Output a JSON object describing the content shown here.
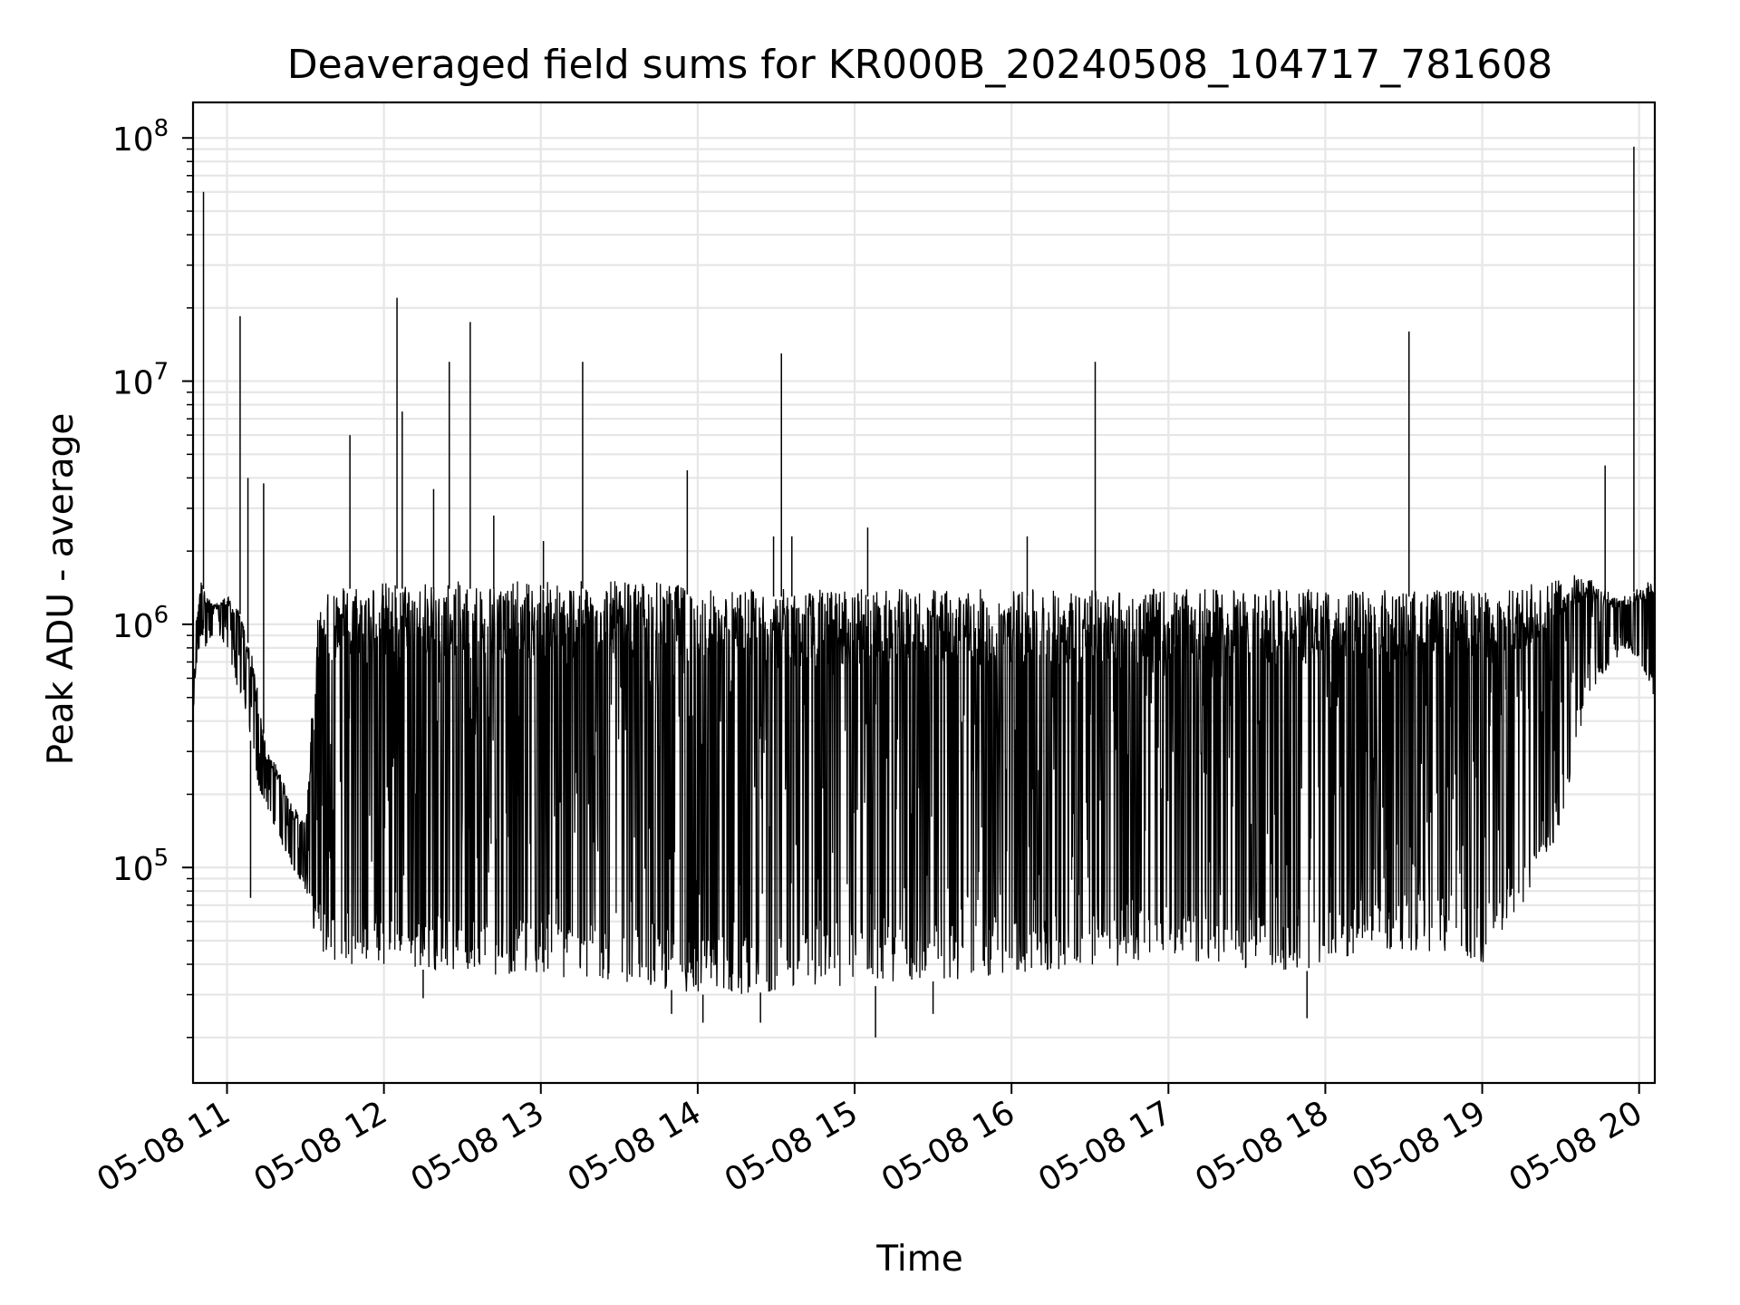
{
  "chart_data": {
    "type": "line",
    "title": "Deaveraged field sums for KR000B_20240508_104717_781608",
    "xlabel": "Time",
    "ylabel": "Peak ADU - average",
    "yscale": "log",
    "ylim": [
      13000,
      140000000
    ],
    "xlim": [
      "2024-05-08 10:47",
      "2024-05-08 20:06"
    ],
    "grid": true,
    "line_color": "#000000",
    "x_ticks": [
      "05-08 11",
      "05-08 12",
      "05-08 13",
      "05-08 14",
      "05-08 15",
      "05-08 16",
      "05-08 17",
      "05-08 18",
      "05-08 19",
      "05-08 20"
    ],
    "y_ticks": [
      {
        "base": "10",
        "exp": "5",
        "value": 100000
      },
      {
        "base": "10",
        "exp": "6",
        "value": 1000000
      },
      {
        "base": "10",
        "exp": "7",
        "value": 10000000
      },
      {
        "base": "10",
        "exp": "8",
        "value": 100000000
      }
    ],
    "series": [
      {
        "x": [
          "10:47",
          "10:48",
          "10:50",
          "10:52",
          "10:55",
          "11:00",
          "11:05",
          "11:10",
          "11:12",
          "11:15",
          "11:20",
          "11:25",
          "11:30",
          "11:35",
          "11:40",
          "11:45",
          "11:50",
          "12:00",
          "12:15",
          "12:30",
          "12:45",
          "13:00",
          "13:15",
          "13:30",
          "13:45",
          "14:00",
          "14:15",
          "14:30",
          "14:45",
          "15:00",
          "15:15",
          "15:30",
          "15:45",
          "16:00",
          "16:15",
          "16:30",
          "16:45",
          "17:00",
          "17:15",
          "17:30",
          "17:45",
          "18:00",
          "18:15",
          "18:30",
          "18:45",
          "19:00",
          "19:10",
          "19:20",
          "19:30",
          "19:40",
          "19:50",
          "19:55",
          "20:00",
          "20:05"
        ],
        "y_top": [
          400000,
          1000000,
          1500000,
          1300000,
          1200000,
          1300000,
          1100000,
          700000,
          500000,
          300000,
          250000,
          180000,
          150000,
          1200000,
          1300000,
          1400000,
          1400000,
          1400000,
          1400000,
          1400000,
          1400000,
          1400000,
          1400000,
          1400000,
          1400000,
          1300000,
          1300000,
          1300000,
          1300000,
          1300000,
          1300000,
          1300000,
          1300000,
          1300000,
          1300000,
          1300000,
          1300000,
          1300000,
          1300000,
          1300000,
          1300000,
          1300000,
          1300000,
          1300000,
          1300000,
          1300000,
          1300000,
          1400000,
          1500000,
          1600000,
          1300000,
          1300000,
          1400000,
          1500000
        ],
        "y_bottom": [
          300000,
          600000,
          900000,
          800000,
          900000,
          800000,
          500000,
          300000,
          200000,
          180000,
          130000,
          100000,
          80000,
          45000,
          42000,
          40000,
          40000,
          38000,
          38000,
          37000,
          36000,
          35000,
          34000,
          33000,
          32000,
          30000,
          30000,
          31000,
          32000,
          32000,
          33000,
          34000,
          35000,
          36000,
          37000,
          38000,
          40000,
          42000,
          40000,
          38000,
          37000,
          38000,
          45000,
          45000,
          45000,
          40000,
          55000,
          80000,
          150000,
          500000,
          700000,
          800000,
          700000,
          500000
        ]
      }
    ],
    "spikes": [
      {
        "x": "10:51",
        "y": 60000000
      },
      {
        "x": "11:05",
        "y": 18500000
      },
      {
        "x": "11:08",
        "y": 4000000
      },
      {
        "x": "11:14",
        "y": 3800000
      },
      {
        "x": "11:47",
        "y": 6000000
      },
      {
        "x": "12:05",
        "y": 22000000
      },
      {
        "x": "12:07",
        "y": 7500000
      },
      {
        "x": "12:19",
        "y": 3600000
      },
      {
        "x": "12:25",
        "y": 12000000
      },
      {
        "x": "12:33",
        "y": 17500000
      },
      {
        "x": "12:42",
        "y": 2800000
      },
      {
        "x": "13:01",
        "y": 2200000
      },
      {
        "x": "13:16",
        "y": 12000000
      },
      {
        "x": "13:56",
        "y": 4300000
      },
      {
        "x": "14:29",
        "y": 2300000
      },
      {
        "x": "14:32",
        "y": 13000000
      },
      {
        "x": "14:36",
        "y": 2300000
      },
      {
        "x": "15:05",
        "y": 2500000
      },
      {
        "x": "16:06",
        "y": 2300000
      },
      {
        "x": "16:32",
        "y": 12000000
      },
      {
        "x": "18:32",
        "y": 16000000
      },
      {
        "x": "19:47",
        "y": 4500000
      },
      {
        "x": "19:58",
        "y": 92000000
      }
    ],
    "dips": [
      {
        "x": "11:09",
        "y": 75000
      },
      {
        "x": "12:15",
        "y": 29000
      },
      {
        "x": "13:50",
        "y": 25000
      },
      {
        "x": "14:02",
        "y": 23000
      },
      {
        "x": "14:24",
        "y": 23000
      },
      {
        "x": "15:08",
        "y": 20000
      },
      {
        "x": "15:30",
        "y": 25000
      },
      {
        "x": "17:53",
        "y": 24000
      }
    ]
  }
}
